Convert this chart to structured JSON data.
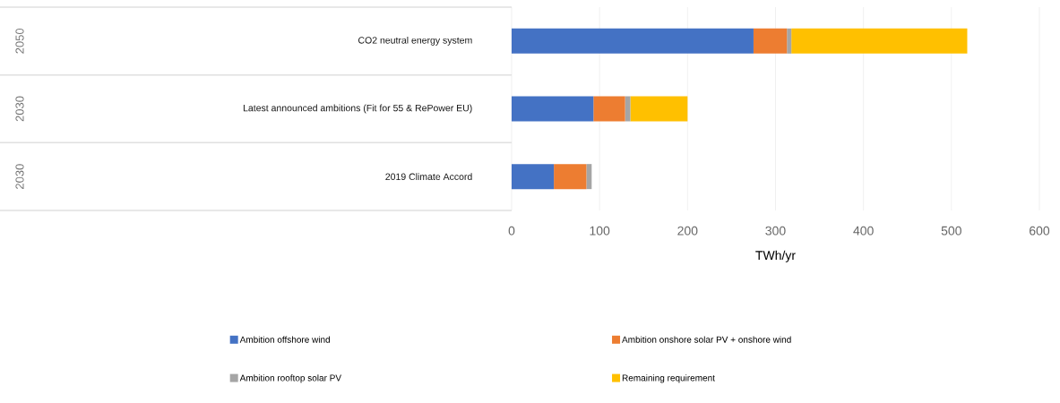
{
  "chart_data": {
    "type": "bar",
    "orientation": "horizontal",
    "stacked": true,
    "categories": [
      "CO2 neutral energy system",
      "Latest announced ambitions (Fit for 55 & RePower EU)",
      "2019 Climate Accord"
    ],
    "series": [
      {
        "name": "Ambition offshore wind",
        "color": "#4472c4",
        "values": [
          275,
          93,
          48
        ]
      },
      {
        "name": "Ambition onshore solar PV + onshore wind",
        "color": "#ed7d31",
        "values": [
          38,
          36,
          37
        ]
      },
      {
        "name": "Ambition rooftop solar PV",
        "color": "#a5a5a5",
        "values": [
          5,
          6,
          6
        ]
      },
      {
        "name": "Remaining requirement",
        "color": "#ffc000",
        "values": [
          200,
          65,
          null
        ]
      }
    ],
    "xlabel": "TWh/yr",
    "xlim": [
      0,
      600
    ],
    "xticks": [
      0,
      100,
      200,
      300,
      400,
      500,
      600
    ],
    "annotations": [
      "2050",
      "2030",
      "2030"
    ],
    "grid": "x",
    "legend": "bottom"
  }
}
